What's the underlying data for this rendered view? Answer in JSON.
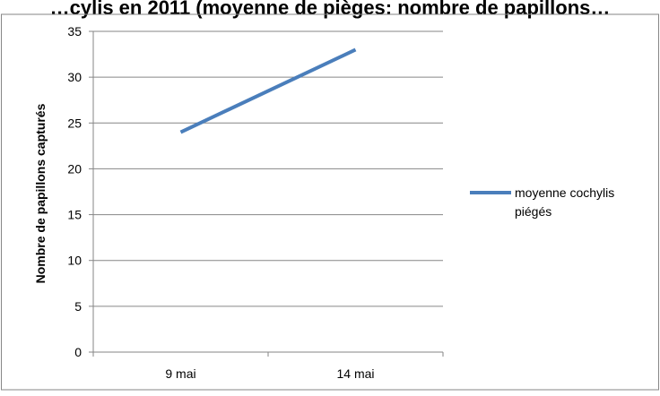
{
  "chart_data": {
    "type": "line",
    "title": "…cylis en 2011 (moyenne de pièges: nombre de papillons…",
    "xlabel": "",
    "ylabel": "Nombre de papillons  capturés",
    "categories": [
      "9 mai",
      "14 mai"
    ],
    "series": [
      {
        "name": "moyenne cochylis piégés",
        "values": [
          24,
          33
        ],
        "color": "#4a7ebb"
      }
    ],
    "ylim": [
      0,
      35
    ],
    "yticks": [
      0,
      5,
      10,
      15,
      20,
      25,
      30,
      35
    ],
    "ytick_labels": [
      "0",
      "5",
      "10",
      "15",
      "20",
      "25",
      "30",
      "35"
    ],
    "grid": true,
    "legend_position": "right",
    "legend_lines": [
      "moyenne cochylis",
      "piégés"
    ]
  }
}
